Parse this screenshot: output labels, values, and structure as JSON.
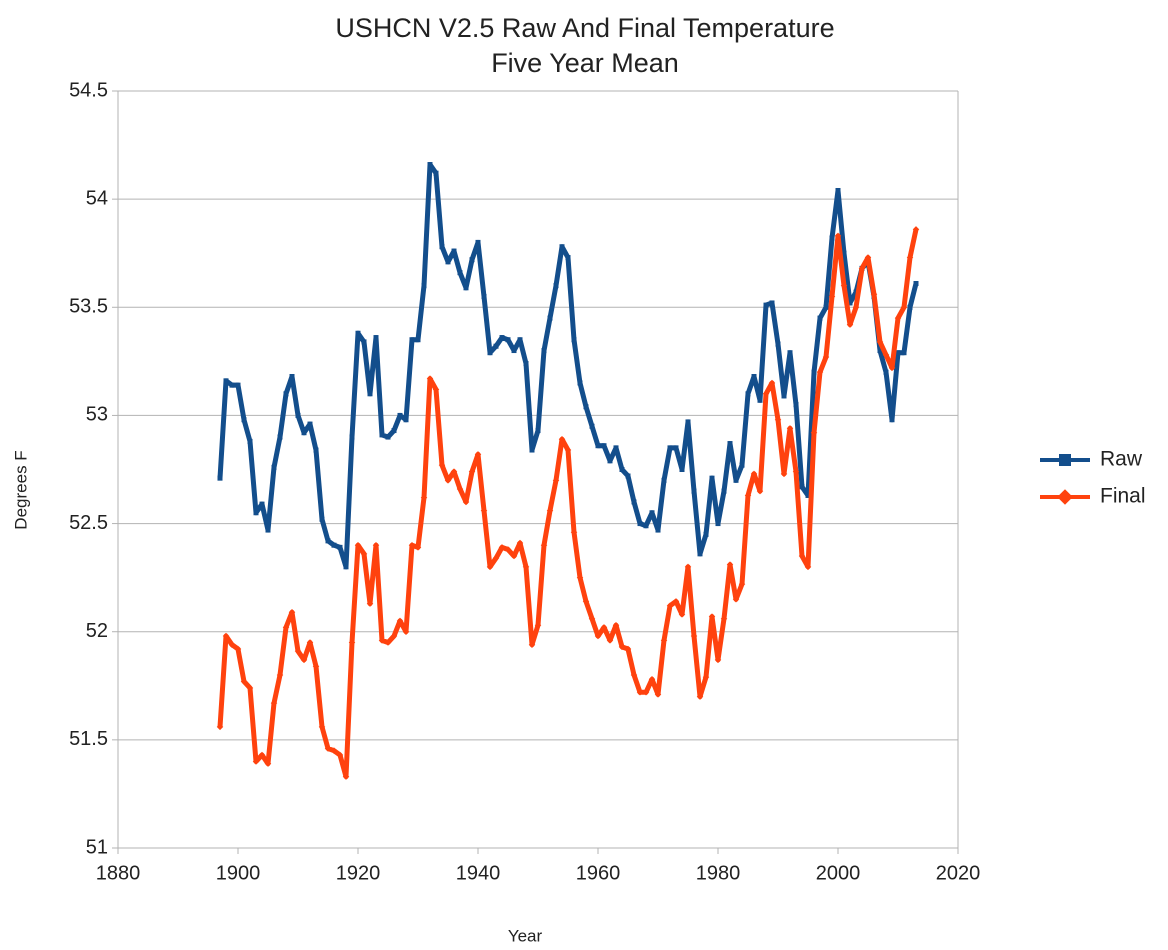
{
  "chart_data": {
    "type": "line",
    "title": "USHCN V2.5 Raw And Final Temperature",
    "subtitle": "Five Year Mean",
    "x_label": "Year",
    "y_label": "Degrees F",
    "xlim": [
      1880,
      2020
    ],
    "xticks": [
      1880,
      1900,
      1920,
      1940,
      1960,
      1980,
      2000,
      2020
    ],
    "ylim": [
      51,
      54.5
    ],
    "yticks": [
      51,
      51.5,
      52,
      52.5,
      53,
      53.5,
      54,
      54.5
    ],
    "grid": true,
    "legend": "right",
    "x": [
      1897,
      1898,
      1899,
      1900,
      1901,
      1902,
      1903,
      1904,
      1905,
      1906,
      1907,
      1908,
      1909,
      1910,
      1911,
      1912,
      1913,
      1914,
      1915,
      1916,
      1917,
      1918,
      1919,
      1920,
      1921,
      1922,
      1923,
      1924,
      1925,
      1926,
      1927,
      1928,
      1929,
      1930,
      1931,
      1932,
      1933,
      1934,
      1935,
      1936,
      1937,
      1938,
      1939,
      1940,
      1941,
      1942,
      1943,
      1944,
      1945,
      1946,
      1947,
      1948,
      1949,
      1950,
      1951,
      1952,
      1953,
      1954,
      1955,
      1956,
      1957,
      1958,
      1959,
      1960,
      1961,
      1962,
      1963,
      1964,
      1965,
      1966,
      1967,
      1968,
      1969,
      1970,
      1971,
      1972,
      1973,
      1974,
      1975,
      1976,
      1977,
      1978,
      1979,
      1980,
      1981,
      1982,
      1983,
      1984,
      1985,
      1986,
      1987,
      1988,
      1989,
      1990,
      1991,
      1992,
      1993,
      1994,
      1995,
      1996,
      1997,
      1998,
      1999,
      2000,
      2001,
      2002,
      2003,
      2004,
      2005,
      2006,
      2007,
      2008,
      2009,
      2010,
      2011,
      2012,
      2013
    ],
    "series": [
      {
        "name": "Raw",
        "color": "#134e8c",
        "marker": "square",
        "values": [
          52.71,
          53.16,
          53.14,
          53.14,
          52.98,
          52.88,
          52.55,
          52.59,
          52.47,
          52.76,
          52.9,
          53.1,
          53.18,
          53.0,
          52.92,
          52.96,
          52.84,
          52.52,
          52.42,
          52.4,
          52.39,
          52.3,
          52.9,
          53.38,
          53.34,
          53.1,
          53.36,
          52.91,
          52.9,
          52.93,
          53.0,
          52.98,
          53.35,
          53.35,
          53.6,
          54.16,
          54.12,
          53.78,
          53.71,
          53.76,
          53.66,
          53.59,
          53.72,
          53.8,
          53.55,
          53.29,
          53.32,
          53.36,
          53.35,
          53.3,
          53.35,
          53.24,
          52.84,
          52.93,
          53.3,
          53.45,
          53.6,
          53.78,
          53.73,
          53.35,
          53.15,
          53.04,
          52.95,
          52.86,
          52.86,
          52.79,
          52.85,
          52.75,
          52.72,
          52.6,
          52.5,
          52.49,
          52.55,
          52.47,
          52.7,
          52.85,
          52.85,
          52.75,
          52.97,
          52.65,
          52.36,
          52.45,
          52.71,
          52.5,
          52.65,
          52.87,
          52.7,
          52.77,
          53.1,
          53.18,
          53.07,
          53.51,
          53.52,
          53.33,
          53.09,
          53.29,
          53.05,
          52.67,
          52.63,
          53.2,
          53.45,
          53.5,
          53.82,
          54.04,
          53.75,
          53.52,
          53.57,
          53.68,
          53.71,
          53.55,
          53.3,
          53.2,
          52.98,
          53.29,
          53.29,
          53.5,
          53.61
        ]
      },
      {
        "name": "Final",
        "color": "#ff420e",
        "marker": "diamond",
        "values": [
          51.56,
          51.98,
          51.94,
          51.92,
          51.77,
          51.74,
          51.4,
          51.43,
          51.39,
          51.67,
          51.8,
          52.02,
          52.09,
          51.91,
          51.87,
          51.95,
          51.84,
          51.56,
          51.46,
          51.45,
          51.43,
          51.33,
          51.95,
          52.4,
          52.36,
          52.13,
          52.4,
          51.96,
          51.95,
          51.98,
          52.05,
          52.0,
          52.4,
          52.39,
          52.62,
          53.17,
          53.12,
          52.77,
          52.7,
          52.74,
          52.66,
          52.6,
          52.74,
          52.82,
          52.56,
          52.3,
          52.34,
          52.39,
          52.38,
          52.35,
          52.41,
          52.3,
          51.94,
          52.03,
          52.4,
          52.56,
          52.7,
          52.89,
          52.84,
          52.46,
          52.25,
          52.14,
          52.06,
          51.98,
          52.02,
          51.96,
          52.03,
          51.93,
          51.92,
          51.8,
          51.72,
          51.72,
          51.78,
          51.71,
          51.96,
          52.12,
          52.14,
          52.08,
          52.3,
          51.98,
          51.7,
          51.79,
          52.07,
          51.87,
          52.06,
          52.31,
          52.15,
          52.22,
          52.63,
          52.73,
          52.65,
          53.1,
          53.15,
          52.98,
          52.73,
          52.94,
          52.74,
          52.35,
          52.3,
          52.92,
          53.2,
          53.27,
          53.55,
          53.83,
          53.6,
          53.42,
          53.5,
          53.68,
          53.73,
          53.56,
          53.34,
          53.28,
          53.22,
          53.45,
          53.5,
          53.73,
          53.86
        ]
      }
    ]
  }
}
